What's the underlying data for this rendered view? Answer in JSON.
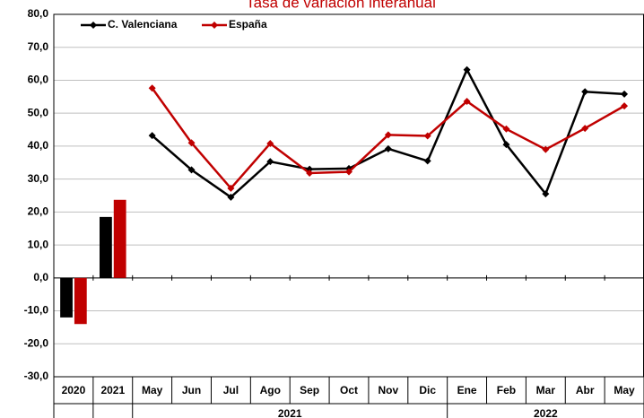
{
  "chart_data": [
    {
      "type": "bar",
      "title": "Tasa de variación interanual",
      "categories": [
        "2020",
        "2021"
      ],
      "series": [
        {
          "color": "#000000",
          "values": [
            -12.0,
            18.5
          ]
        },
        {
          "color": "#c00000",
          "values": [
            -14.0,
            23.7
          ]
        }
      ],
      "ylim": [
        -30,
        80
      ],
      "yticks": [
        {
          "value": -30,
          "label": "-30,0"
        },
        {
          "value": -20,
          "label": "-20,0"
        },
        {
          "value": -10,
          "label": "-10,0"
        },
        {
          "value": 0,
          "label": "0,0"
        },
        {
          "value": 10,
          "label": "10,0"
        },
        {
          "value": 20,
          "label": "20,0"
        },
        {
          "value": 30,
          "label": "30,0"
        },
        {
          "value": 40,
          "label": "40,0"
        },
        {
          "value": 50,
          "label": "50,0"
        },
        {
          "value": 60,
          "label": "60,0"
        },
        {
          "value": 70,
          "label": "70,0"
        },
        {
          "value": 80,
          "label": "80,0"
        }
      ],
      "grid": true
    },
    {
      "type": "line",
      "categories": [
        "May",
        "Jun",
        "Jul",
        "Ago",
        "Sep",
        "Oct",
        "Nov",
        "Dic",
        "Ene",
        "Feb",
        "Mar",
        "Abr",
        "May"
      ],
      "x_groups": [
        {
          "label": "2021",
          "categories": [
            0,
            7
          ]
        },
        {
          "label": "2022",
          "categories": [
            8,
            12
          ]
        }
      ],
      "series": [
        {
          "name": "C. Valenciana",
          "color": "#000000",
          "values": [
            43.2,
            32.8,
            24.5,
            35.3,
            33.0,
            33.2,
            39.2,
            35.5,
            63.2,
            40.5,
            25.5,
            56.5,
            55.8
          ]
        },
        {
          "name": "España",
          "color": "#c00000",
          "values": [
            57.6,
            41.0,
            27.2,
            40.8,
            31.8,
            32.2,
            43.4,
            43.1,
            53.6,
            45.2,
            39.0,
            45.4,
            52.2
          ]
        }
      ],
      "legend": "upper left"
    }
  ]
}
